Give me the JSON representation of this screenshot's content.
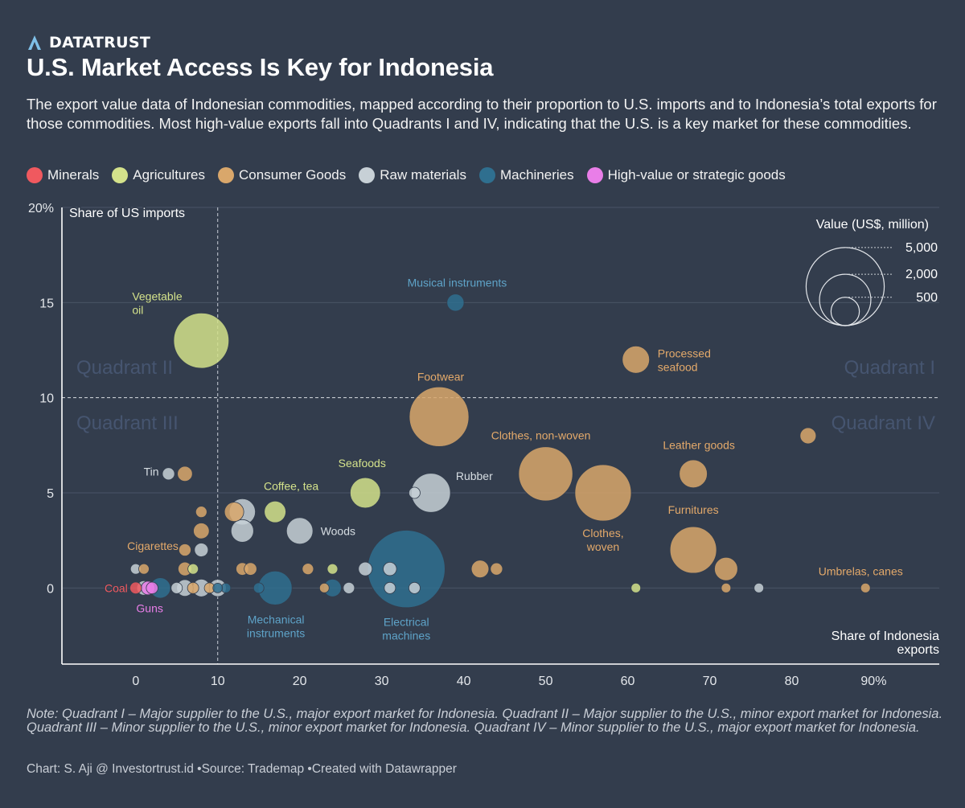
{
  "brand": {
    "name": "DATATRUST",
    "icon": "datatrust-logo-icon",
    "icon_color": "#7fc0e8"
  },
  "title": "U.S. Market Access Is Key for Indonesia",
  "subtitle": "The export value data of Indonesian commodities, mapped according to their proportion to U.S. imports and to Indonesia’s total exports for those commodities. Most high-value exports fall into Quadrants I and IV, indicating that the U.S. is a key market for these commodities.",
  "legend": [
    {
      "label": "Minerals",
      "color": "#f0595f"
    },
    {
      "label": "Agricultures",
      "color": "#d4e28b"
    },
    {
      "label": "Consumer Goods",
      "color": "#d9a76b"
    },
    {
      "label": "Raw materials",
      "color": "#c7d0d6"
    },
    {
      "label": "Machineries",
      "color": "#2f6f8f"
    },
    {
      "label": "High-value or strategic goods",
      "color": "#e97ee8"
    }
  ],
  "chart_data": {
    "type": "scatter",
    "bubble": true,
    "title": "",
    "xlabel": "Share of Indonesia exports",
    "ylabel": "Share of US imports",
    "xlim": [
      -9,
      98
    ],
    "ylim": [
      -4,
      20
    ],
    "x_ticks": [
      0,
      10,
      20,
      30,
      40,
      50,
      60,
      70,
      80,
      90
    ],
    "x_tick_labels": [
      "0",
      "10",
      "20",
      "30",
      "40",
      "50",
      "60",
      "70",
      "80",
      "90%"
    ],
    "y_ticks": [
      0,
      5,
      10,
      15,
      20
    ],
    "y_tick_labels": [
      "0",
      "5",
      "10",
      "15",
      "20%"
    ],
    "grid": "horizontal",
    "reference_lines": {
      "x": 10,
      "y": 10
    },
    "quadrant_labels": [
      {
        "text": "Quadrant II",
        "position": "upper-left"
      },
      {
        "text": "Quadrant I",
        "position": "upper-right"
      },
      {
        "text": "Quadrant III",
        "position": "lower-left"
      },
      {
        "text": "Quadrant IV",
        "position": "lower-right"
      }
    ],
    "size_legend": {
      "title": "Value (US$, million)",
      "values": [
        5000,
        2000,
        500
      ],
      "labels": [
        "5,000",
        "2,000",
        "500"
      ],
      "position": "top-right"
    },
    "category_colors": {
      "Minerals": "#f0595f",
      "Agricultures": "#d4e28b",
      "Consumer Goods": "#d9a76b",
      "Raw materials": "#c7d0d6",
      "Machineries": "#2f6f8f",
      "High-value or strategic goods": "#e97ee8"
    },
    "label_colors": {
      "Minerals": "#f0595f",
      "Agricultures": "#d4e28b",
      "Consumer Goods": "#e3a96a",
      "Raw materials": "#d6dde2",
      "Machineries": "#5ea3c8",
      "High-value or strategic goods": "#e97ee8"
    },
    "points": [
      {
        "label": "Vegetable oil",
        "category": "Agricultures",
        "x": 8,
        "y": 13,
        "value": 2200
      },
      {
        "label": "Musical instruments",
        "category": "Machineries",
        "x": 39,
        "y": 15,
        "value": 120
      },
      {
        "label": "Processed seafood",
        "category": "Consumer Goods",
        "x": 61,
        "y": 12,
        "value": 420
      },
      {
        "label": "Footwear",
        "category": "Consumer Goods",
        "x": 37,
        "y": 9,
        "value": 2600
      },
      {
        "label": "",
        "category": "Consumer Goods",
        "x": 82,
        "y": 8,
        "value": 100
      },
      {
        "label": "Clothes, non-woven",
        "category": "Consumer Goods",
        "x": 50,
        "y": 6,
        "value": 2100
      },
      {
        "label": "Clothes, woven",
        "category": "Consumer Goods",
        "x": 57,
        "y": 5,
        "value": 2300
      },
      {
        "label": "Leather goods",
        "category": "Consumer Goods",
        "x": 68,
        "y": 6,
        "value": 450
      },
      {
        "label": "Furnitures",
        "category": "Consumer Goods",
        "x": 68,
        "y": 2,
        "value": 1500
      },
      {
        "label": "",
        "category": "Consumer Goods",
        "x": 72,
        "y": 1,
        "value": 280
      },
      {
        "label": "Umbrelas, canes",
        "category": "Consumer Goods",
        "x": 89,
        "y": 0,
        "value": 15
      },
      {
        "label": "",
        "category": "Consumer Goods",
        "x": 72,
        "y": 0,
        "value": 15
      },
      {
        "label": "",
        "category": "Agricultures",
        "x": 61,
        "y": 0,
        "value": 15
      },
      {
        "label": "",
        "category": "Raw materials",
        "x": 76,
        "y": 0,
        "value": 15
      },
      {
        "label": "Seafoods",
        "category": "Agricultures",
        "x": 28,
        "y": 5,
        "value": 550
      },
      {
        "label": "Rubber",
        "category": "Raw materials",
        "x": 36,
        "y": 5,
        "value": 1000
      },
      {
        "label": "",
        "category": "Raw materials",
        "x": 34,
        "y": 5,
        "value": 30
      },
      {
        "label": "Coffee, tea",
        "category": "Agricultures",
        "x": 17,
        "y": 4,
        "value": 230
      },
      {
        "label": "",
        "category": "Raw materials",
        "x": 13,
        "y": 4,
        "value": 380
      },
      {
        "label": "",
        "category": "Consumer Goods",
        "x": 12,
        "y": 4,
        "value": 170
      },
      {
        "label": "",
        "category": "Raw materials",
        "x": 13,
        "y": 3,
        "value": 260
      },
      {
        "label": "Woods",
        "category": "Raw materials",
        "x": 20,
        "y": 3,
        "value": 390
      },
      {
        "label": "Tin",
        "category": "Raw materials",
        "x": 4,
        "y": 6,
        "value": 40
      },
      {
        "label": "",
        "category": "Consumer Goods",
        "x": 6,
        "y": 6,
        "value": 80
      },
      {
        "label": "",
        "category": "Consumer Goods",
        "x": 8,
        "y": 4,
        "value": 30
      },
      {
        "label": "",
        "category": "Consumer Goods",
        "x": 8,
        "y": 3,
        "value": 95
      },
      {
        "label": "Cigarettes",
        "category": "Consumer Goods",
        "x": 6,
        "y": 2,
        "value": 40
      },
      {
        "label": "",
        "category": "Raw materials",
        "x": 8,
        "y": 2,
        "value": 60
      },
      {
        "label": "",
        "category": "Raw materials",
        "x": 0,
        "y": 1,
        "value": 22
      },
      {
        "label": "",
        "category": "Consumer Goods",
        "x": 1,
        "y": 1,
        "value": 22
      },
      {
        "label": "",
        "category": "Consumer Goods",
        "x": 6,
        "y": 1,
        "value": 60
      },
      {
        "label": "",
        "category": "Agricultures",
        "x": 7,
        "y": 1,
        "value": 22
      },
      {
        "label": "",
        "category": "Consumer Goods",
        "x": 13,
        "y": 1,
        "value": 45
      },
      {
        "label": "",
        "category": "Consumer Goods",
        "x": 14,
        "y": 1,
        "value": 45
      },
      {
        "label": "",
        "category": "Consumer Goods",
        "x": 21,
        "y": 1,
        "value": 30
      },
      {
        "label": "",
        "category": "Agricultures",
        "x": 24,
        "y": 1,
        "value": 22
      },
      {
        "label": "",
        "category": "Raw materials",
        "x": 28,
        "y": 1,
        "value": 60
      },
      {
        "label": "",
        "category": "Raw materials",
        "x": 31,
        "y": 1,
        "value": 55
      },
      {
        "label": "",
        "category": "Consumer Goods",
        "x": 42,
        "y": 1,
        "value": 130
      },
      {
        "label": "",
        "category": "Consumer Goods",
        "x": 44,
        "y": 1,
        "value": 40
      },
      {
        "label": "Electrical machines",
        "category": "Machineries",
        "x": 33,
        "y": 1,
        "value": 4600
      },
      {
        "label": "Mechanical instruments",
        "category": "Machineries",
        "x": 17,
        "y": 0,
        "value": 720
      },
      {
        "label": "",
        "category": "Machineries",
        "x": 24,
        "y": 0,
        "value": 130
      },
      {
        "label": "",
        "category": "Raw materials",
        "x": 26,
        "y": 0,
        "value": 30
      },
      {
        "label": "",
        "category": "Raw materials",
        "x": 31,
        "y": 0,
        "value": 30
      },
      {
        "label": "",
        "category": "Raw materials",
        "x": 34,
        "y": 0,
        "value": 30
      },
      {
        "label": "",
        "category": "Machineries",
        "x": 15,
        "y": 0,
        "value": 22
      },
      {
        "label": "",
        "category": "Raw materials",
        "x": 10,
        "y": 0,
        "value": 120
      },
      {
        "label": "",
        "category": "Raw materials",
        "x": 8,
        "y": 0,
        "value": 130
      },
      {
        "label": "",
        "category": "Raw materials",
        "x": 6,
        "y": 0,
        "value": 110
      },
      {
        "label": "",
        "category": "Machineries",
        "x": 3,
        "y": 0,
        "value": 200
      },
      {
        "label": "",
        "category": "Raw materials",
        "x": 1,
        "y": 0,
        "value": 70
      },
      {
        "label": "",
        "category": "Raw materials",
        "x": 5,
        "y": 0,
        "value": 30
      },
      {
        "label": "",
        "category": "Consumer Goods",
        "x": 7,
        "y": 0,
        "value": 30
      },
      {
        "label": "",
        "category": "Consumer Goods",
        "x": 9,
        "y": 0,
        "value": 22
      },
      {
        "label": "",
        "category": "Machineries",
        "x": 11,
        "y": 0,
        "value": 15
      },
      {
        "label": "",
        "category": "Machineries",
        "x": 10,
        "y": 0,
        "value": 15
      },
      {
        "label": "",
        "category": "Consumer Goods",
        "x": 23,
        "y": 0,
        "value": 15
      },
      {
        "label": "",
        "category": "High-value or strategic goods",
        "x": 1.5,
        "y": 0,
        "value": 60
      },
      {
        "label": "Guns",
        "category": "High-value or strategic goods",
        "x": 2,
        "y": 0,
        "value": 35
      },
      {
        "label": "Coal",
        "category": "Minerals",
        "x": 0,
        "y": 0,
        "value": 35
      }
    ]
  },
  "note": "Note: Quadrant I – Major supplier to the U.S., major export market for Indonesia. Quadrant II – Major supplier to the U.S., minor export market for Indonesia. Quadrant III – Minor supplier to the U.S., minor export market for Indonesia. Quadrant IV – Minor supplier to the U.S., major export market for Indonesia.",
  "footer": {
    "credit": "Chart: S. Aji @ Investortrust.id",
    "source": "Source: Trademap",
    "tool": "Created with Datawrapper"
  }
}
